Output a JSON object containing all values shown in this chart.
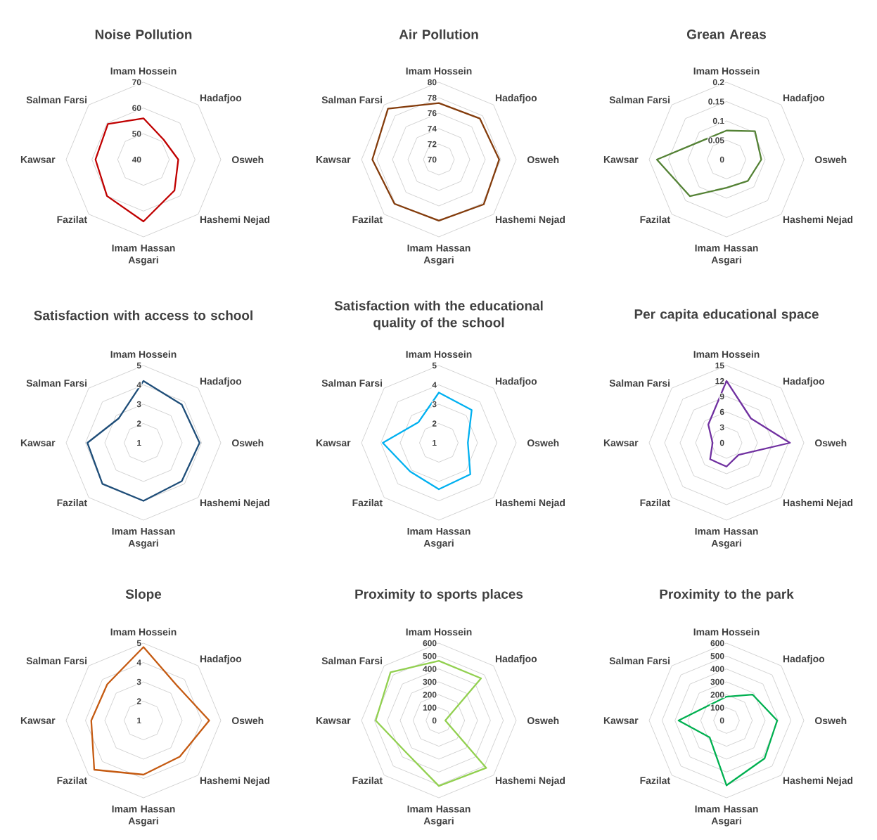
{
  "chart_data": [
    {
      "type": "radar",
      "title": "Noise Pollution",
      "categories": [
        "Imam Hossein",
        "Hadafjoo",
        "Osweh",
        "Hashemi Nejad",
        "Imam Hassan Asgari",
        "Fazilat",
        "Kawsar",
        "Salman Farsi"
      ],
      "series": [
        {
          "color": "#c00000",
          "values": [
            56,
            51,
            53.5,
            57,
            64,
            60,
            58.6,
            59.5
          ]
        }
      ],
      "ylim": [
        40,
        70
      ],
      "yticks": [
        40,
        50,
        60,
        70
      ],
      "grid": true
    },
    {
      "type": "radar",
      "title": "Air Pollution",
      "categories": [
        "Imam Hossein",
        "Hadafjoo",
        "Osweh",
        "Hashemi Nejad",
        "Imam Hassan Asgari",
        "Fazilat",
        "Kawsar",
        "Salman Farsi"
      ],
      "series": [
        {
          "color": "#843c0c",
          "values": [
            77.3,
            77.5,
            77.8,
            78.2,
            77.9,
            78.1,
            78.6,
            79.3
          ]
        }
      ],
      "ylim": [
        70,
        80
      ],
      "yticks": [
        70,
        72,
        74,
        76,
        78,
        80
      ],
      "grid": true
    },
    {
      "type": "radar",
      "title": "Grean Areas",
      "categories": [
        "Imam Hossein",
        "Hadafjoo",
        "Osweh",
        "Hashemi Nejad",
        "Imam Hassan Asgari",
        "Fazilat",
        "Kawsar",
        "Salman Farsi"
      ],
      "series": [
        {
          "color": "#548235",
          "values": [
            0.075,
            0.104,
            0.09,
            0.078,
            0.073,
            0.134,
            0.18,
            0.075
          ]
        }
      ],
      "ylim": [
        0,
        0.2
      ],
      "yticks": [
        0,
        0.05,
        0.1,
        0.15,
        0.2
      ],
      "grid": true
    },
    {
      "type": "radar",
      "title": "Satisfaction with access to school",
      "categories": [
        "Imam Hossein",
        "Hadafjoo",
        "Osweh",
        "Hashemi Nejad",
        "Imam Hassan Asgari",
        "Fazilat",
        "Kawsar",
        "Salman Farsi"
      ],
      "series": [
        {
          "color": "#1f4e79",
          "values": [
            4.2,
            3.8,
            3.9,
            3.8,
            4.0,
            4.0,
            3.9,
            2.8
          ]
        }
      ],
      "ylim": [
        1,
        5
      ],
      "yticks": [
        1,
        2,
        3,
        4,
        5
      ],
      "grid": true
    },
    {
      "type": "radar",
      "title": "Satisfaction with the educational quality of the school",
      "categories": [
        "Imam Hossein",
        "Hadafjoo",
        "Osweh",
        "Hashemi Nejad",
        "Imam Hassan Asgari",
        "Fazilat",
        "Kawsar",
        "Salman Farsi"
      ],
      "series": [
        {
          "color": "#00b0f0",
          "values": [
            3.6,
            3.4,
            2.5,
            3.3,
            3.4,
            3.1,
            3.9,
            2.5
          ]
        }
      ],
      "ylim": [
        1,
        5
      ],
      "yticks": [
        1,
        2,
        3,
        4,
        5
      ],
      "grid": true
    },
    {
      "type": "radar",
      "title": "Per capita educational space",
      "categories": [
        "Imam Hossein",
        "Hadafjoo",
        "Osweh",
        "Hashemi Nejad",
        "Imam Hassan Asgari",
        "Fazilat",
        "Kawsar",
        "Salman Farsi"
      ],
      "series": [
        {
          "color": "#7030a0",
          "values": [
            12,
            6.7,
            12.3,
            3.3,
            4.6,
            4.5,
            2.7,
            5
          ]
        }
      ],
      "ylim": [
        0,
        15
      ],
      "yticks": [
        0,
        3,
        6,
        9,
        12,
        15
      ],
      "grid": true
    },
    {
      "type": "radar",
      "title": "Slope",
      "categories": [
        "Imam Hossein",
        "Hadafjoo",
        "Osweh",
        "Hashemi Nejad",
        "Imam Hassan Asgari",
        "Fazilat",
        "Kawsar",
        "Salman Farsi"
      ],
      "series": [
        {
          "color": "#c55a11",
          "values": [
            4.8,
            3.5,
            4.4,
            3.65,
            3.8,
            4.6,
            3.7,
            3.65
          ]
        }
      ],
      "ylim": [
        1,
        5
      ],
      "yticks": [
        1,
        2,
        3,
        4,
        5
      ],
      "grid": true
    },
    {
      "type": "radar",
      "title": "Proximity to sports places",
      "categories": [
        "Imam Hossein",
        "Hadafjoo",
        "Osweh",
        "Hashemi Nejad",
        "Imam Hassan Asgari",
        "Fazilat",
        "Kawsar",
        "Salman Farsi"
      ],
      "series": [
        {
          "color": "#92d050",
          "values": [
            463,
            463,
            50,
            520,
            508,
            355,
            490,
            530
          ]
        }
      ],
      "ylim": [
        0,
        600
      ],
      "yticks": [
        0,
        100,
        200,
        300,
        400,
        500,
        600
      ],
      "grid": true
    },
    {
      "type": "radar",
      "title": "Proximity to the park",
      "categories": [
        "Imam Hossein",
        "Hadafjoo",
        "Osweh",
        "Hashemi Nejad",
        "Imam Hassan Asgari",
        "Fazilat",
        "Kawsar",
        "Salman Farsi"
      ],
      "series": [
        {
          "color": "#00b050",
          "values": [
            185,
            285,
            393,
            417,
            503,
            185,
            372,
            175
          ]
        }
      ],
      "ylim": [
        0,
        600
      ],
      "yticks": [
        0,
        100,
        200,
        300,
        400,
        500,
        600
      ],
      "grid": true
    }
  ]
}
